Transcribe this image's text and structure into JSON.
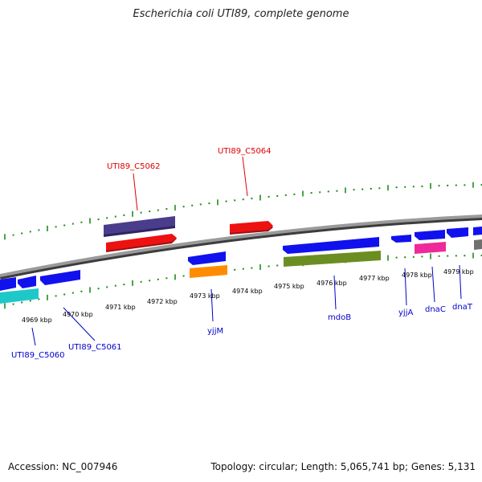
{
  "title": "Escherichia coli UTI89, complete genome",
  "footer": {
    "accession": "Accession: NC_007946",
    "summary": "Topology: circular; Length: 5,065,741 bp; Genes: 5,131"
  },
  "colors": {
    "tick": "#1e8a1e",
    "backbone": "#808080",
    "gene_blue": "#1111ee",
    "gene_red": "#ee1111",
    "gene_purple": "#4a3d8c",
    "gene_orange": "#ff8c00",
    "gene_olive": "#6b8e23",
    "gene_cyan": "#1ec8c8",
    "gene_magenta": "#ee2a9a",
    "gene_gray": "#707070",
    "label_red": "#dd0000",
    "label_blue": "#0000cc",
    "scale_text": "#000000"
  },
  "scale_labels": [
    "4969 kbp",
    "4970 kbp",
    "4971 kbp",
    "4972 kbp",
    "4973 kbp",
    "4974 kbp",
    "4975 kbp",
    "4976 kbp",
    "4977 kbp",
    "4978 kbp",
    "4979 kbp"
  ],
  "gene_labels": {
    "uti89_c5062": "UTI89_C5062",
    "uti89_c5064": "UTI89_C5064",
    "uti89_c5060": "UTI89_C5060",
    "uti89_c5061": "UTI89_C5061",
    "yjjm": "yjjM",
    "mdob": "mdoB",
    "yjja": "yjjA",
    "dnac": "dnaC",
    "dnat": "dnaT"
  }
}
